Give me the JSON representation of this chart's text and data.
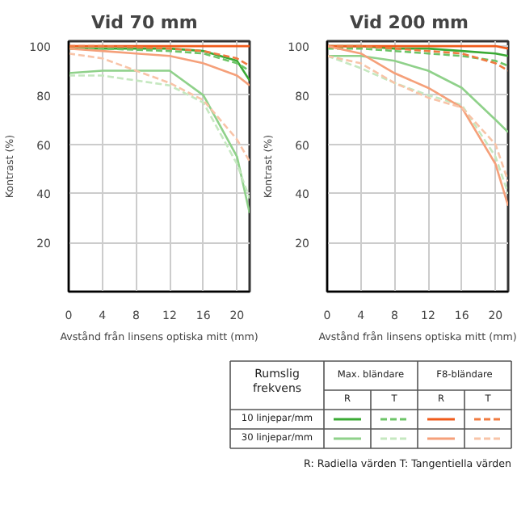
{
  "chart_data": [
    {
      "type": "line",
      "title": "Vid 70 mm",
      "xlabel": "Avstånd från linsens optiska mitt (mm)",
      "ylabel": "Kontrast (%)",
      "x": [
        0,
        4,
        8,
        12,
        16,
        20,
        21.5
      ],
      "xlim": [
        0,
        21.5
      ],
      "ylim": [
        0,
        102
      ],
      "xticks": [
        0,
        4,
        8,
        12,
        16,
        20
      ],
      "yticks": [
        20,
        40,
        60,
        80,
        100
      ],
      "grid": true,
      "series": [
        {
          "color": "#3aaa35",
          "line_style": "solid",
          "values": [
            99,
            99,
            99,
            99,
            98,
            94,
            86
          ]
        },
        {
          "color": "#6cc467",
          "line_style": "dashed",
          "values": [
            99,
            99,
            98.5,
            98,
            97,
            93,
            90
          ]
        },
        {
          "color": "#f05a1a",
          "line_style": "solid",
          "values": [
            100,
            100,
            100,
            100,
            100,
            100,
            100
          ]
        },
        {
          "color": "#f07a40",
          "line_style": "dashed",
          "values": [
            100,
            100,
            99.5,
            99,
            98,
            95,
            92
          ]
        },
        {
          "color": "#8fd18a",
          "line_style": "solid",
          "values": [
            89,
            90,
            90,
            90,
            80,
            55,
            32
          ]
        },
        {
          "color": "#c5e8c0",
          "line_style": "dashed",
          "values": [
            88,
            88,
            86,
            84,
            77,
            52,
            38
          ]
        },
        {
          "color": "#f5a07a",
          "line_style": "solid",
          "values": [
            99,
            98,
            97,
            96,
            93,
            88,
            84
          ]
        },
        {
          "color": "#f8c4a8",
          "line_style": "dashed",
          "values": [
            97,
            95,
            90,
            85,
            78,
            62,
            53
          ]
        }
      ]
    },
    {
      "type": "line",
      "title": "Vid 200 mm",
      "xlabel": "Avstånd från linsens optiska mitt (mm)",
      "ylabel": "Kontrast (%)",
      "x": [
        0,
        4,
        8,
        12,
        16,
        20,
        21.5
      ],
      "xlim": [
        0,
        21.5
      ],
      "ylim": [
        0,
        102
      ],
      "xticks": [
        0,
        4,
        8,
        12,
        16,
        20
      ],
      "yticks": [
        20,
        40,
        60,
        80,
        100
      ],
      "grid": true,
      "series": [
        {
          "color": "#3aaa35",
          "line_style": "solid",
          "values": [
            100,
            100,
            99,
            99,
            98,
            97,
            96
          ]
        },
        {
          "color": "#6cc467",
          "line_style": "dashed",
          "values": [
            99,
            99,
            98,
            97,
            96,
            94,
            92
          ]
        },
        {
          "color": "#f05a1a",
          "line_style": "solid",
          "values": [
            100,
            100,
            100,
            100,
            100,
            100,
            99
          ]
        },
        {
          "color": "#f07a40",
          "line_style": "dashed",
          "values": [
            100,
            100,
            99,
            98,
            97,
            93,
            90
          ]
        },
        {
          "color": "#8fd18a",
          "line_style": "solid",
          "values": [
            96,
            96,
            94,
            90,
            83,
            70,
            65
          ]
        },
        {
          "color": "#c5e8c0",
          "line_style": "dashed",
          "values": [
            96,
            91,
            85,
            80,
            76,
            55,
            40
          ]
        },
        {
          "color": "#f5a07a",
          "line_style": "solid",
          "values": [
            100,
            97,
            89,
            83,
            75,
            52,
            35
          ]
        },
        {
          "color": "#f8c4a8",
          "line_style": "dashed",
          "values": [
            96,
            93,
            85,
            79,
            75,
            60,
            45
          ]
        }
      ]
    },
    {
      "type": "other",
      "legend_title": "Rumslig frekvens",
      "categories": [
        "Max. bländare",
        "F8-bländare"
      ],
      "y_categories": [
        "10 linjepar/mm",
        "30 linjepar/mm"
      ],
      "annotations": [
        "R",
        "T",
        "R",
        "T",
        "R: Radiella värden T: Tangentiella värden"
      ]
    }
  ]
}
